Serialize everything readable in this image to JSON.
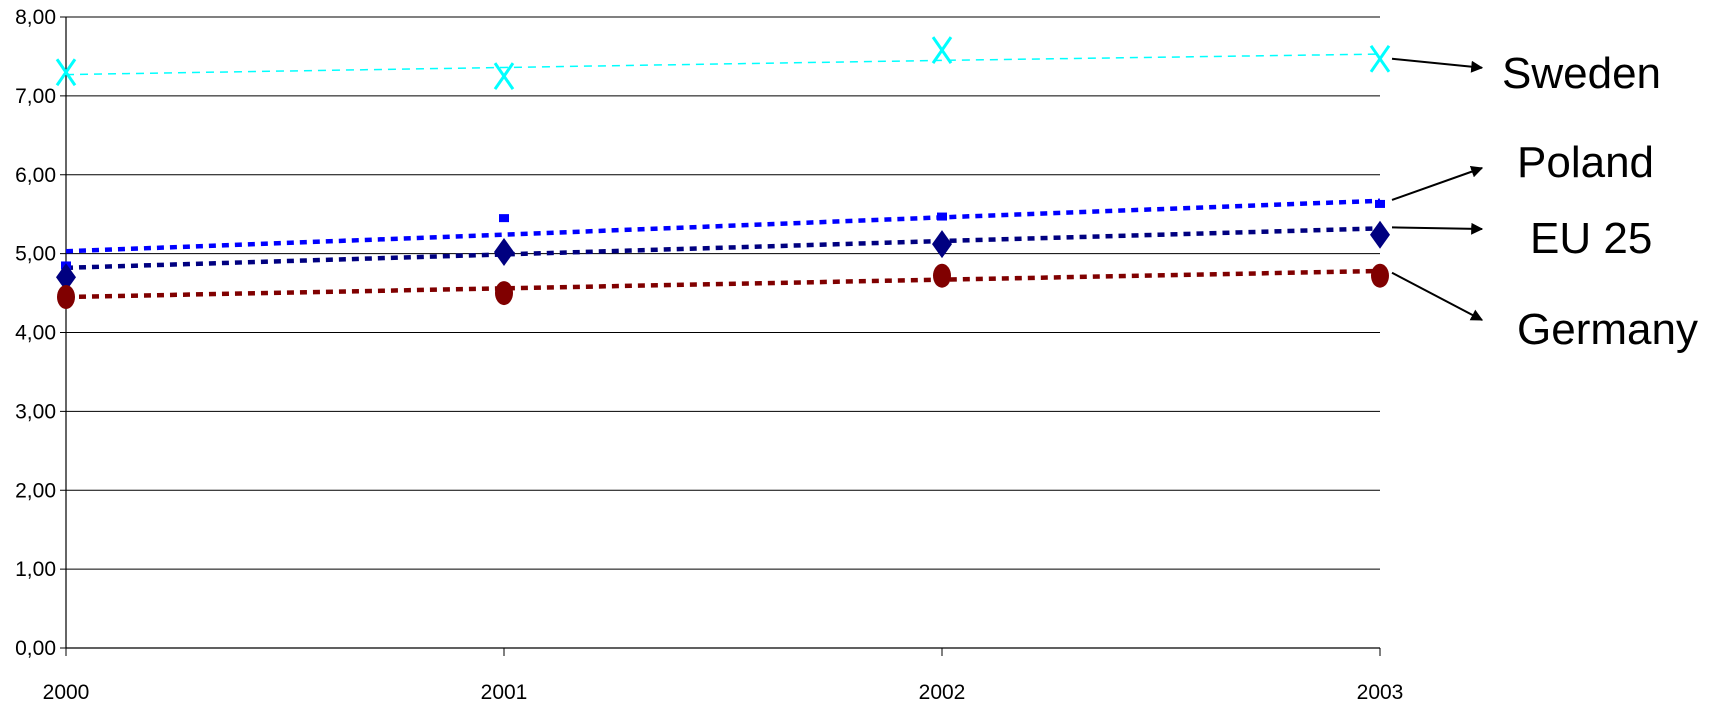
{
  "chart_data": {
    "type": "line",
    "title": "",
    "xlabel": "",
    "ylabel": "",
    "categories": [
      "2000",
      "2001",
      "2002",
      "2003"
    ],
    "ylim": [
      0,
      8
    ],
    "yticks": [
      "0,00",
      "1,00",
      "2,00",
      "3,00",
      "4,00",
      "5,00",
      "6,00",
      "7,00",
      "8,00"
    ],
    "grid": "horizontal",
    "series": [
      {
        "name": "Sweden",
        "values": [
          7.3,
          7.25,
          7.58,
          7.47
        ],
        "trend": [
          7.27,
          7.36,
          7.45,
          7.53
        ],
        "color": "#00FFFF",
        "marker": "x"
      },
      {
        "name": "Poland",
        "values": [
          4.85,
          5.45,
          5.47,
          5.63
        ],
        "trend": [
          5.03,
          5.24,
          5.46,
          5.67
        ],
        "color": "#0000FF",
        "marker": "square"
      },
      {
        "name": "EU 25",
        "values": [
          4.7,
          5.02,
          5.12,
          5.24
        ],
        "trend": [
          4.82,
          4.99,
          5.16,
          5.32
        ],
        "color": "#000080",
        "marker": "diamond"
      },
      {
        "name": "Germany",
        "values": [
          4.45,
          4.5,
          4.72,
          4.72
        ],
        "trend": [
          4.45,
          4.56,
          4.67,
          4.78
        ],
        "color": "#800000",
        "marker": "circle"
      }
    ]
  }
}
